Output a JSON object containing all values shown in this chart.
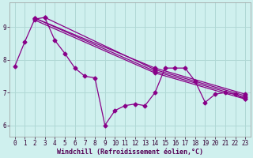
{
  "xlabel": "Windchill (Refroidissement éolien,°C)",
  "background_color": "#cff0ee",
  "grid_color": "#b0d8d5",
  "line_color": "#880088",
  "x": [
    0,
    1,
    2,
    3,
    4,
    5,
    6,
    7,
    8,
    9,
    10,
    11,
    12,
    13,
    14,
    15,
    16,
    17,
    18,
    19,
    20,
    21,
    22,
    23
  ],
  "line_main": [
    7.8,
    8.55,
    9.25,
    9.3,
    8.6,
    8.2,
    7.75,
    7.5,
    7.45,
    6.0,
    6.45,
    6.6,
    6.65,
    6.6,
    7.0,
    7.75,
    7.75,
    7.75,
    7.35,
    6.7,
    6.95,
    7.0,
    6.95,
    6.8
  ],
  "straight_lines": [
    {
      "x": [
        2,
        14,
        23
      ],
      "y": [
        9.28,
        7.65,
        6.85
      ]
    },
    {
      "x": [
        2,
        14,
        23
      ],
      "y": [
        9.28,
        7.75,
        6.95
      ]
    },
    {
      "x": [
        3,
        14,
        23
      ],
      "y": [
        9.3,
        7.7,
        6.9
      ]
    },
    {
      "x": [
        2,
        14,
        23
      ],
      "y": [
        9.22,
        7.6,
        6.8
      ]
    }
  ],
  "ylim": [
    5.65,
    9.75
  ],
  "xlim": [
    -0.5,
    23.5
  ],
  "yticks": [
    6,
    7,
    8,
    9
  ],
  "xticks": [
    0,
    1,
    2,
    3,
    4,
    5,
    6,
    7,
    8,
    9,
    10,
    11,
    12,
    13,
    14,
    15,
    16,
    17,
    18,
    19,
    20,
    21,
    22,
    23
  ],
  "marker_size": 2.5,
  "line_width": 0.9,
  "tick_fontsize": 5.5,
  "xlabel_fontsize": 6,
  "ylabel_fontsize": 6
}
